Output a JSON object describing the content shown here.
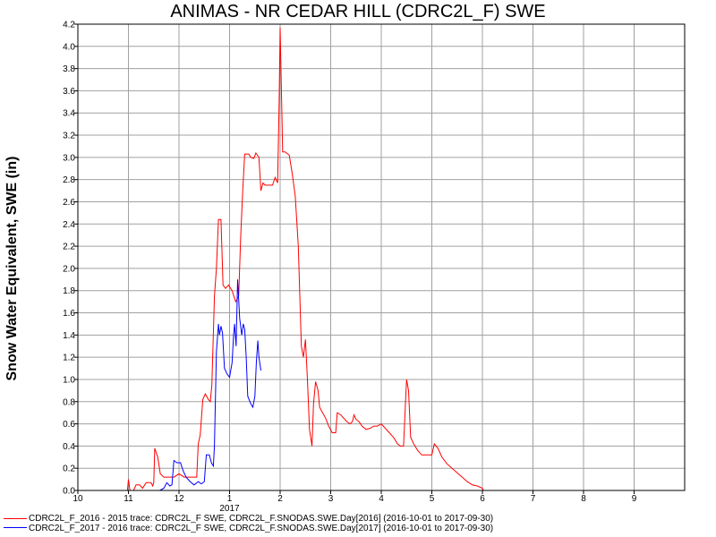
{
  "chart_data": {
    "type": "line",
    "title": "ANIMAS - NR CEDAR HILL (CDRC2L_F) SWE",
    "ylabel": "Snow Water Equivalent, SWE (in)",
    "xlabel": "",
    "x_axis": {
      "range": [
        0,
        12
      ],
      "ticks": [
        {
          "x": 0,
          "label": "10"
        },
        {
          "x": 1,
          "label": "11"
        },
        {
          "x": 2,
          "label": "12"
        },
        {
          "x": 3,
          "label": "1"
        },
        {
          "x": 4,
          "label": "2"
        },
        {
          "x": 5,
          "label": "3"
        },
        {
          "x": 6,
          "label": "4"
        },
        {
          "x": 7,
          "label": "5"
        },
        {
          "x": 8,
          "label": "6"
        },
        {
          "x": 9,
          "label": "7"
        },
        {
          "x": 10,
          "label": "8"
        },
        {
          "x": 11,
          "label": "9"
        }
      ],
      "year_label": {
        "x": 3,
        "label": "2017"
      }
    },
    "y_axis": {
      "range": [
        0,
        4.2
      ],
      "ticks": [
        "0.0",
        "0.2",
        "0.4",
        "0.6",
        "0.8",
        "1.0",
        "1.2",
        "1.4",
        "1.6",
        "1.8",
        "2.0",
        "2.2",
        "2.4",
        "2.6",
        "2.8",
        "3.0",
        "3.2",
        "3.4",
        "3.6",
        "3.8",
        "4.0",
        "4.2"
      ]
    },
    "grid": true,
    "legend_position": "bottom-left",
    "series": [
      {
        "name": "CDRC2L_F_2016 - 2015 trace: CDRC2L_F SWE, CDRC2L_F.SNODAS.SWE.Day[2016] (2016-10-01 to 2017-09-30)",
        "color": "#ff0000",
        "points": [
          [
            0.98,
            0.0
          ],
          [
            1.0,
            0.1
          ],
          [
            1.03,
            0.0
          ],
          [
            1.1,
            0.0
          ],
          [
            1.15,
            0.05
          ],
          [
            1.22,
            0.05
          ],
          [
            1.28,
            0.02
          ],
          [
            1.35,
            0.07
          ],
          [
            1.45,
            0.07
          ],
          [
            1.48,
            0.04
          ],
          [
            1.5,
            0.07
          ],
          [
            1.52,
            0.38
          ],
          [
            1.58,
            0.3
          ],
          [
            1.63,
            0.15
          ],
          [
            1.7,
            0.12
          ],
          [
            1.8,
            0.12
          ],
          [
            1.9,
            0.12
          ],
          [
            2.0,
            0.15
          ],
          [
            2.1,
            0.12
          ],
          [
            2.25,
            0.12
          ],
          [
            2.35,
            0.12
          ],
          [
            2.38,
            0.42
          ],
          [
            2.42,
            0.5
          ],
          [
            2.47,
            0.82
          ],
          [
            2.52,
            0.87
          ],
          [
            2.58,
            0.82
          ],
          [
            2.62,
            0.8
          ],
          [
            2.65,
            0.95
          ],
          [
            2.7,
            1.75
          ],
          [
            2.74,
            2.0
          ],
          [
            2.78,
            2.44
          ],
          [
            2.83,
            2.44
          ],
          [
            2.87,
            1.85
          ],
          [
            2.92,
            1.82
          ],
          [
            2.98,
            1.85
          ],
          [
            3.05,
            1.8
          ],
          [
            3.12,
            1.7
          ],
          [
            3.18,
            1.75
          ],
          [
            3.22,
            2.28
          ],
          [
            3.26,
            2.7
          ],
          [
            3.3,
            3.03
          ],
          [
            3.38,
            3.03
          ],
          [
            3.42,
            3.0
          ],
          [
            3.48,
            2.99
          ],
          [
            3.52,
            3.04
          ],
          [
            3.58,
            3.0
          ],
          [
            3.62,
            2.7
          ],
          [
            3.66,
            2.77
          ],
          [
            3.7,
            2.75
          ],
          [
            3.78,
            2.75
          ],
          [
            3.85,
            2.75
          ],
          [
            3.9,
            2.82
          ],
          [
            3.95,
            2.77
          ],
          [
            3.98,
            3.5
          ],
          [
            4.0,
            4.17
          ],
          [
            4.03,
            3.5
          ],
          [
            4.05,
            3.05
          ],
          [
            4.1,
            3.05
          ],
          [
            4.18,
            3.02
          ],
          [
            4.24,
            2.85
          ],
          [
            4.3,
            2.65
          ],
          [
            4.36,
            2.2
          ],
          [
            4.42,
            1.3
          ],
          [
            4.46,
            1.2
          ],
          [
            4.5,
            1.36
          ],
          [
            4.54,
            1.0
          ],
          [
            4.58,
            0.55
          ],
          [
            4.63,
            0.4
          ],
          [
            4.66,
            0.78
          ],
          [
            4.7,
            0.98
          ],
          [
            4.75,
            0.9
          ],
          [
            4.78,
            0.75
          ],
          [
            4.84,
            0.7
          ],
          [
            4.9,
            0.65
          ],
          [
            4.96,
            0.58
          ],
          [
            5.03,
            0.52
          ],
          [
            5.1,
            0.52
          ],
          [
            5.13,
            0.7
          ],
          [
            5.2,
            0.68
          ],
          [
            5.26,
            0.65
          ],
          [
            5.32,
            0.62
          ],
          [
            5.38,
            0.6
          ],
          [
            5.43,
            0.62
          ],
          [
            5.46,
            0.68
          ],
          [
            5.5,
            0.64
          ],
          [
            5.56,
            0.62
          ],
          [
            5.62,
            0.58
          ],
          [
            5.7,
            0.55
          ],
          [
            5.78,
            0.56
          ],
          [
            5.85,
            0.58
          ],
          [
            5.92,
            0.58
          ],
          [
            6.0,
            0.6
          ],
          [
            6.08,
            0.56
          ],
          [
            6.16,
            0.52
          ],
          [
            6.24,
            0.48
          ],
          [
            6.32,
            0.42
          ],
          [
            6.38,
            0.4
          ],
          [
            6.44,
            0.4
          ],
          [
            6.48,
            0.8
          ],
          [
            6.5,
            1.0
          ],
          [
            6.54,
            0.9
          ],
          [
            6.58,
            0.48
          ],
          [
            6.64,
            0.42
          ],
          [
            6.72,
            0.36
          ],
          [
            6.8,
            0.32
          ],
          [
            6.9,
            0.32
          ],
          [
            7.0,
            0.32
          ],
          [
            7.05,
            0.42
          ],
          [
            7.12,
            0.38
          ],
          [
            7.2,
            0.3
          ],
          [
            7.3,
            0.24
          ],
          [
            7.4,
            0.2
          ],
          [
            7.5,
            0.16
          ],
          [
            7.6,
            0.12
          ],
          [
            7.7,
            0.08
          ],
          [
            7.8,
            0.05
          ],
          [
            7.9,
            0.04
          ],
          [
            8.0,
            0.02
          ],
          [
            8.02,
            0.0
          ]
        ]
      },
      {
        "name": "CDRC2L_F_2017 - 2016 trace: CDRC2L_F SWE, CDRC2L_F.SNODAS.SWE.Day[2017] (2016-10-01 to 2017-09-30)",
        "color": "#0000ff",
        "points": [
          [
            1.62,
            0.0
          ],
          [
            1.7,
            0.02
          ],
          [
            1.76,
            0.07
          ],
          [
            1.82,
            0.04
          ],
          [
            1.86,
            0.05
          ],
          [
            1.9,
            0.27
          ],
          [
            1.96,
            0.25
          ],
          [
            2.03,
            0.25
          ],
          [
            2.08,
            0.18
          ],
          [
            2.14,
            0.12
          ],
          [
            2.22,
            0.08
          ],
          [
            2.3,
            0.05
          ],
          [
            2.38,
            0.08
          ],
          [
            2.44,
            0.06
          ],
          [
            2.5,
            0.08
          ],
          [
            2.54,
            0.32
          ],
          [
            2.6,
            0.32
          ],
          [
            2.64,
            0.25
          ],
          [
            2.68,
            0.22
          ],
          [
            2.7,
            0.4
          ],
          [
            2.74,
            1.25
          ],
          [
            2.78,
            1.5
          ],
          [
            2.8,
            1.4
          ],
          [
            2.83,
            1.48
          ],
          [
            2.86,
            1.42
          ],
          [
            2.9,
            1.1
          ],
          [
            2.95,
            1.05
          ],
          [
            3.0,
            1.02
          ],
          [
            3.05,
            1.15
          ],
          [
            3.08,
            1.4
          ],
          [
            3.1,
            1.5
          ],
          [
            3.13,
            1.3
          ],
          [
            3.16,
            1.9
          ],
          [
            3.2,
            1.55
          ],
          [
            3.24,
            1.4
          ],
          [
            3.27,
            1.5
          ],
          [
            3.3,
            1.45
          ],
          [
            3.33,
            1.2
          ],
          [
            3.36,
            0.85
          ],
          [
            3.42,
            0.78
          ],
          [
            3.46,
            0.75
          ],
          [
            3.5,
            0.85
          ],
          [
            3.53,
            1.15
          ],
          [
            3.56,
            1.35
          ],
          [
            3.58,
            1.2
          ],
          [
            3.62,
            1.08
          ]
        ]
      }
    ]
  }
}
